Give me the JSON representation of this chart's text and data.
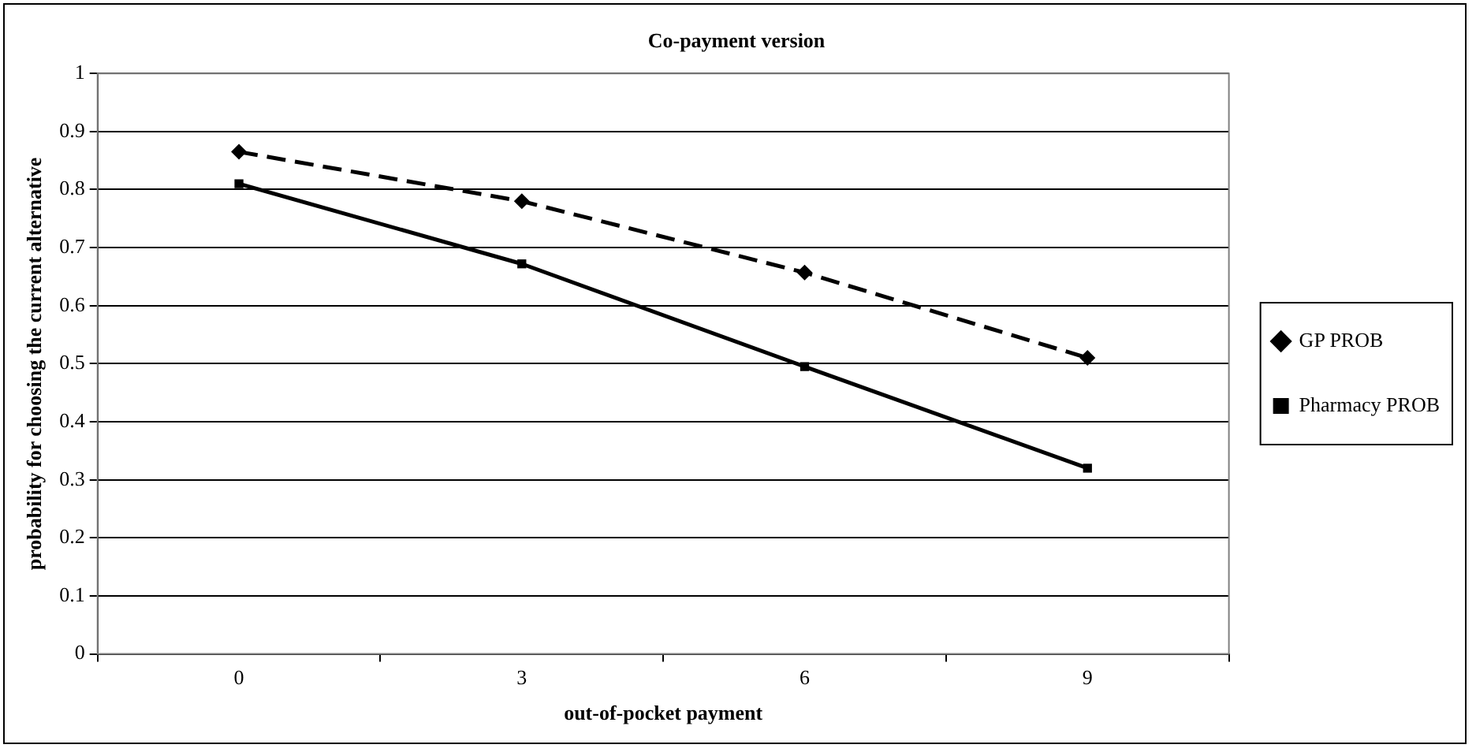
{
  "chart_data": {
    "type": "line",
    "title": "Co-payment version",
    "xlabel": "out-of-pocket payment",
    "ylabel": "probability for choosing the current alternative",
    "categories": [
      "0",
      "3",
      "6",
      "9"
    ],
    "series": [
      {
        "name": "GP PROB",
        "color": "#000000",
        "values": [
          0.865,
          0.78,
          0.657,
          0.51
        ],
        "marker": "diamond",
        "line_style": "dashed"
      },
      {
        "name": "Pharmacy PROB",
        "color": "#000000",
        "values": [
          0.81,
          0.672,
          0.495,
          0.32
        ],
        "marker": "square",
        "line_style": "solid"
      }
    ],
    "ylim": [
      0,
      1
    ],
    "yticks": [
      0,
      0.1,
      0.2,
      0.3,
      0.4,
      0.5,
      0.6,
      0.7,
      0.8,
      0.9,
      1
    ],
    "grid": "y",
    "legend": "right"
  }
}
